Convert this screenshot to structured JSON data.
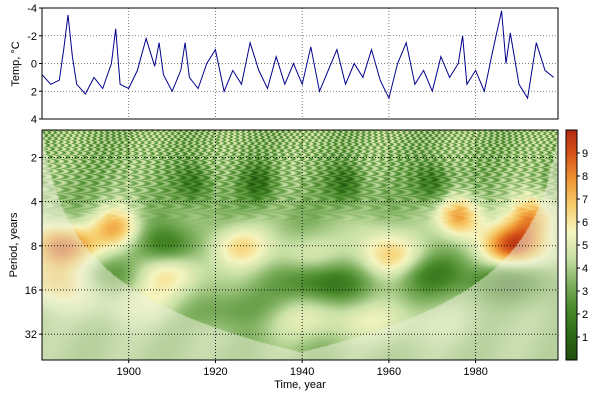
{
  "chart_data": [
    {
      "type": "line",
      "ylabel": "Temp, °C",
      "ylim": [
        4,
        -4
      ],
      "y_inverted": true,
      "xlim": [
        1880,
        1999
      ],
      "yticks": [
        "-4",
        "-2",
        "0",
        "2",
        "4"
      ],
      "ytick_values": [
        -4,
        -2,
        0,
        2,
        4
      ],
      "grid": true,
      "line_color": "#00008b",
      "series": [
        {
          "x": [
            1880,
            1882,
            1884,
            1885,
            1886,
            1887,
            1888,
            1890,
            1892,
            1894,
            1896,
            1897,
            1898,
            1900,
            1902,
            1904,
            1906,
            1907,
            1908,
            1910,
            1912,
            1913,
            1914,
            1916,
            1918,
            1920,
            1922,
            1924,
            1926,
            1928,
            1930,
            1932,
            1934,
            1936,
            1938,
            1940,
            1942,
            1944,
            1946,
            1948,
            1950,
            1952,
            1954,
            1956,
            1958,
            1960,
            1962,
            1964,
            1966,
            1968,
            1970,
            1972,
            1974,
            1976,
            1977,
            1978,
            1980,
            1982,
            1984,
            1986,
            1987,
            1988,
            1990,
            1992,
            1994,
            1996,
            1998
          ],
          "y": [
            0.8,
            1.5,
            1.2,
            -1.0,
            -3.5,
            -0.5,
            1.5,
            2.2,
            1.0,
            1.8,
            0.0,
            -2.5,
            1.5,
            1.8,
            0.5,
            -1.8,
            0.2,
            -1.5,
            0.8,
            2.0,
            0.5,
            -1.5,
            1.0,
            1.8,
            0.0,
            -1.0,
            2.0,
            0.5,
            1.5,
            -1.5,
            0.5,
            1.8,
            -0.5,
            1.5,
            0.0,
            1.5,
            -1.2,
            2.0,
            0.5,
            -1.0,
            1.5,
            0.0,
            1.0,
            -1.0,
            1.2,
            2.5,
            0.0,
            -1.5,
            1.5,
            0.5,
            2.0,
            -0.5,
            1.0,
            0.0,
            -2.0,
            1.5,
            0.5,
            2.0,
            -1.0,
            -3.8,
            0.0,
            -2.2,
            1.5,
            2.5,
            -1.5,
            0.5,
            1.0
          ]
        }
      ]
    },
    {
      "type": "heatmap",
      "xlabel": "Time, year",
      "ylabel": "Period, years",
      "xlim": [
        1880,
        1999
      ],
      "xticks": [
        "1900",
        "1920",
        "1940",
        "1960",
        "1980"
      ],
      "xtick_values": [
        1900,
        1920,
        1940,
        1960,
        1980
      ],
      "y_scale": "log2",
      "ylim": [
        1.3,
        48
      ],
      "y_inverted": true,
      "yticks": [
        "2",
        "4",
        "8",
        "16",
        "32"
      ],
      "ytick_values": [
        2,
        4,
        8,
        16,
        32
      ],
      "colorbar": {
        "range": [
          0,
          10
        ],
        "ticks": [
          "1",
          "2",
          "3",
          "4",
          "5",
          "6",
          "7",
          "8",
          "9"
        ],
        "tick_values": [
          1,
          2,
          3,
          4,
          5,
          6,
          7,
          8,
          9
        ],
        "colors": [
          "#1f4d0f",
          "#2e6b16",
          "#4a8a2a",
          "#7fb060",
          "#c8e0a6",
          "#f5f5c0",
          "#f7d070",
          "#ef9a35",
          "#d9581a",
          "#b22a0f"
        ]
      },
      "grid": true,
      "background_power": 3.5,
      "peaks": [
        {
          "year": 1884.5,
          "period": 8,
          "power": 9.2
        },
        {
          "year": 1884,
          "period": 14,
          "power": 7.2
        },
        {
          "year": 1897,
          "period": 6,
          "power": 7.0
        },
        {
          "year": 1909,
          "period": 12,
          "power": 5.8
        },
        {
          "year": 1905,
          "period": 20,
          "power": 5.2
        },
        {
          "year": 1925,
          "period": 8,
          "power": 6.2
        },
        {
          "year": 1940,
          "period": 9,
          "power": 5.0
        },
        {
          "year": 1957,
          "period": 7,
          "power": 4.8
        },
        {
          "year": 1961,
          "period": 10,
          "power": 6.5
        },
        {
          "year": 1976,
          "period": 5,
          "power": 7.8
        },
        {
          "year": 1989,
          "period": 8,
          "power": 9.5
        },
        {
          "year": 1993,
          "period": 5,
          "power": 7.5
        },
        {
          "year": 1935,
          "period": 24,
          "power": 5.0
        },
        {
          "year": 1960,
          "period": 26,
          "power": 4.8
        }
      ],
      "troughs": [
        {
          "year": 1893,
          "period": 13,
          "power": 1.0
        },
        {
          "year": 1909,
          "period": 8,
          "power": 1.2
        },
        {
          "year": 1923,
          "period": 22,
          "power": 1.5
        },
        {
          "year": 1945,
          "period": 14,
          "power": 1.2
        },
        {
          "year": 1968,
          "period": 12,
          "power": 1.3
        },
        {
          "year": 1988,
          "period": 14,
          "power": 1.0
        },
        {
          "year": 1930,
          "period": 3,
          "power": 1.2
        },
        {
          "year": 1950,
          "period": 3,
          "power": 1.2
        },
        {
          "year": 1970,
          "period": 3,
          "power": 1.2
        },
        {
          "year": 1915,
          "period": 3,
          "power": 1.4
        }
      ]
    }
  ]
}
